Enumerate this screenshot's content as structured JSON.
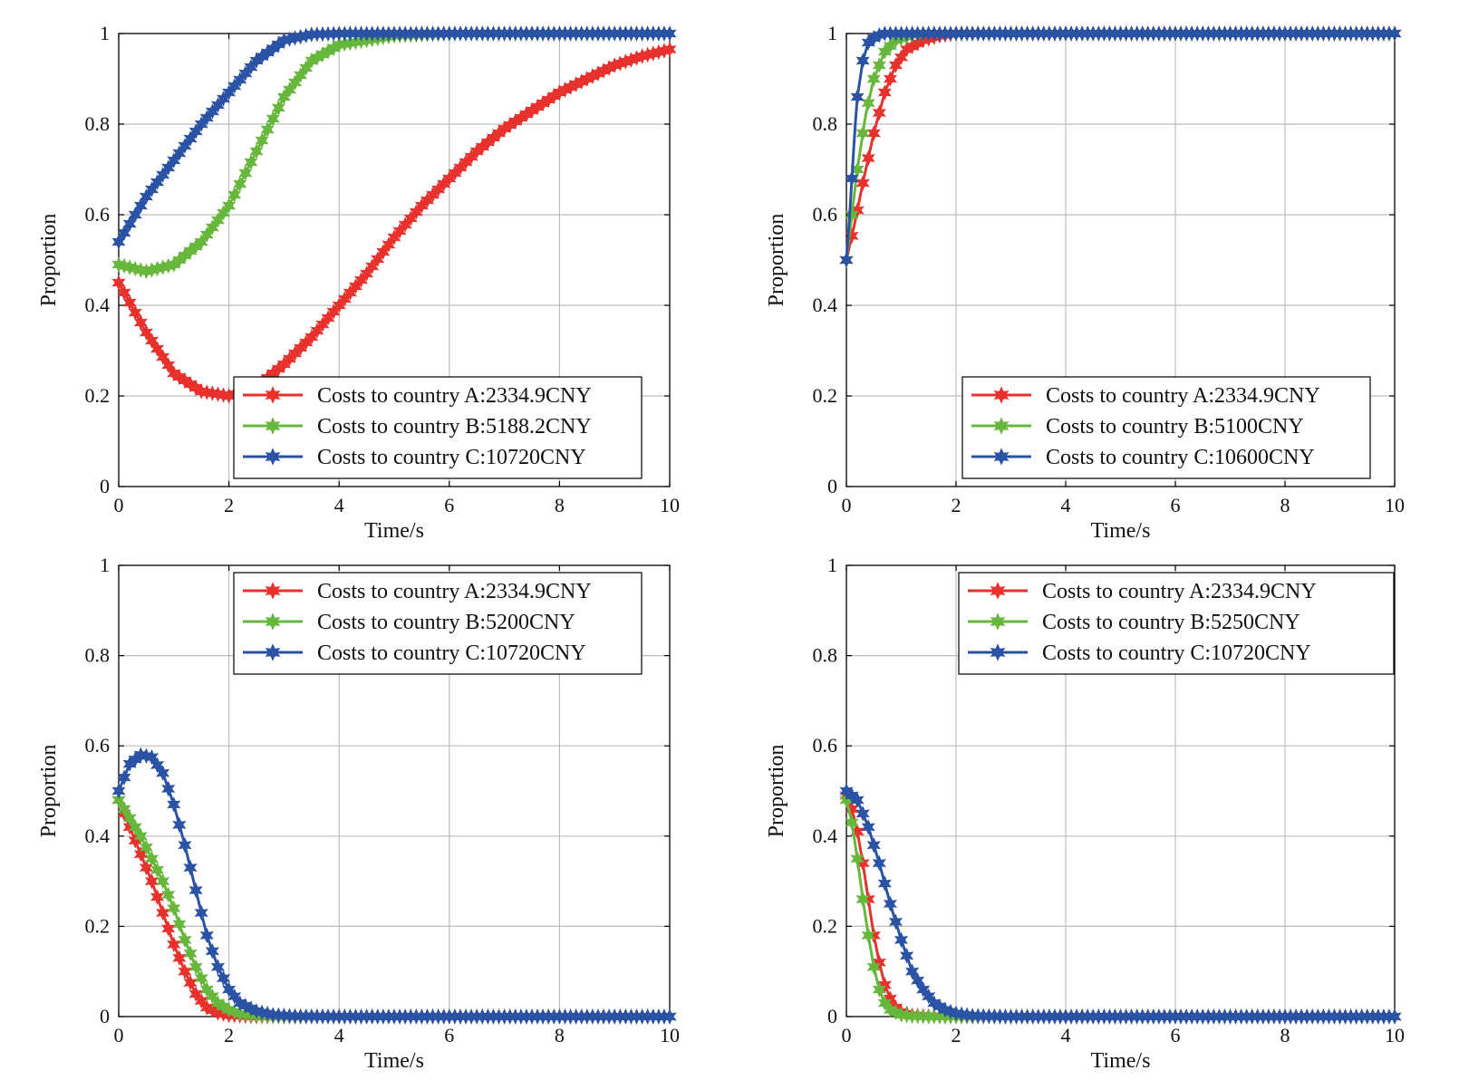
{
  "chart_data": [
    {
      "type": "line",
      "panel": "top-left",
      "xlabel": "Time/s",
      "ylabel": "Proportion",
      "xlim": [
        0,
        10
      ],
      "ylim": [
        0,
        1
      ],
      "xticks": [
        "0",
        "2",
        "4",
        "6",
        "8",
        "10"
      ],
      "yticks": [
        "0",
        "0.2",
        "0.4",
        "0.6",
        "0.8",
        "1"
      ],
      "legend_location": "bottom-right",
      "series": [
        {
          "name": "Costs to country A:2334.9CNY",
          "color": "#e8312d",
          "x": [
            0,
            0.5,
            1,
            1.5,
            2,
            2.5,
            3,
            3.5,
            4,
            4.5,
            5,
            5.5,
            6,
            6.5,
            7,
            7.5,
            8,
            8.5,
            9,
            9.5,
            10
          ],
          "y": [
            0.45,
            0.34,
            0.25,
            0.21,
            0.2,
            0.22,
            0.27,
            0.33,
            0.4,
            0.47,
            0.55,
            0.62,
            0.68,
            0.74,
            0.79,
            0.83,
            0.87,
            0.9,
            0.93,
            0.95,
            0.965
          ]
        },
        {
          "name": "Costs to country B:5188.2CNY",
          "color": "#66b73c",
          "x": [
            0,
            0.5,
            1,
            1.5,
            2,
            2.5,
            3,
            3.5,
            4,
            5,
            6,
            7,
            8,
            9,
            10
          ],
          "y": [
            0.49,
            0.475,
            0.49,
            0.54,
            0.62,
            0.74,
            0.86,
            0.94,
            0.975,
            0.995,
            1,
            1,
            1,
            1,
            1
          ]
        },
        {
          "name": "Costs to country C:10720CNY",
          "color": "#2a52a5",
          "x": [
            0,
            0.5,
            1,
            1.5,
            2,
            2.5,
            3,
            3.5,
            4,
            5,
            6,
            7,
            8,
            9,
            10
          ],
          "y": [
            0.54,
            0.64,
            0.72,
            0.8,
            0.87,
            0.94,
            0.985,
            0.998,
            1,
            1,
            1,
            1,
            1,
            1,
            1
          ]
        }
      ]
    },
    {
      "type": "line",
      "panel": "top-right",
      "xlabel": "Time/s",
      "ylabel": "Proportion",
      "xlim": [
        0,
        10
      ],
      "ylim": [
        0,
        1
      ],
      "xticks": [
        "0",
        "2",
        "4",
        "6",
        "8",
        "10"
      ],
      "yticks": [
        "0",
        "0.2",
        "0.4",
        "0.6",
        "0.8",
        "1"
      ],
      "legend_location": "bottom-right",
      "series": [
        {
          "name": "Costs to country A:2334.9CNY",
          "color": "#e8312d",
          "x": [
            0,
            0.15,
            0.3,
            0.5,
            0.7,
            0.9,
            1.1,
            1.4,
            1.7,
            2,
            3,
            4,
            5,
            6,
            7,
            8,
            9,
            10
          ],
          "y": [
            0.5,
            0.58,
            0.67,
            0.78,
            0.87,
            0.93,
            0.965,
            0.985,
            0.995,
            1,
            1,
            1,
            1,
            1,
            1,
            1,
            1,
            1
          ]
        },
        {
          "name": "Costs to country B:5100CNY",
          "color": "#66b73c",
          "x": [
            0,
            0.1,
            0.2,
            0.35,
            0.5,
            0.7,
            0.9,
            1.2,
            1.5,
            2,
            3,
            4,
            5,
            6,
            7,
            8,
            9,
            10
          ],
          "y": [
            0.5,
            0.6,
            0.7,
            0.82,
            0.9,
            0.96,
            0.985,
            0.997,
            1,
            1,
            1,
            1,
            1,
            1,
            1,
            1,
            1,
            1
          ]
        },
        {
          "name": "Costs to country C:10600CNY",
          "color": "#2a52a5",
          "x": [
            0,
            0.05,
            0.1,
            0.15,
            0.2,
            0.3,
            0.4,
            0.55,
            0.7,
            1,
            2,
            3,
            4,
            5,
            6,
            7,
            8,
            9,
            10
          ],
          "y": [
            0.5,
            0.58,
            0.68,
            0.78,
            0.86,
            0.94,
            0.98,
            0.995,
            1,
            1,
            1,
            1,
            1,
            1,
            1,
            1,
            1,
            1,
            1
          ]
        }
      ]
    },
    {
      "type": "line",
      "panel": "bottom-left",
      "xlabel": "Time/s",
      "ylabel": "Proportion",
      "xlim": [
        0,
        10
      ],
      "ylim": [
        0,
        1
      ],
      "xticks": [
        "0",
        "2",
        "4",
        "6",
        "8",
        "10"
      ],
      "yticks": [
        "0",
        "0.2",
        "0.4",
        "0.6",
        "0.8",
        "1"
      ],
      "legend_location": "top-right",
      "series": [
        {
          "name": "Costs to country A:2334.9CNY",
          "color": "#e8312d",
          "x": [
            0,
            0.2,
            0.4,
            0.6,
            0.8,
            1,
            1.2,
            1.4,
            1.6,
            1.8,
            2,
            2.5,
            3,
            4,
            5,
            6,
            7,
            8,
            9,
            10
          ],
          "y": [
            0.48,
            0.42,
            0.36,
            0.3,
            0.23,
            0.16,
            0.1,
            0.05,
            0.02,
            0.008,
            0.003,
            0,
            0,
            0,
            0,
            0,
            0,
            0,
            0,
            0
          ]
        },
        {
          "name": "Costs to country B:5200CNY",
          "color": "#66b73c",
          "x": [
            0,
            0.2,
            0.4,
            0.6,
            0.8,
            1,
            1.2,
            1.4,
            1.6,
            1.8,
            2,
            2.2,
            2.5,
            3,
            4,
            5,
            6,
            7,
            8,
            9,
            10
          ],
          "y": [
            0.48,
            0.44,
            0.4,
            0.35,
            0.3,
            0.24,
            0.17,
            0.11,
            0.06,
            0.03,
            0.015,
            0.006,
            0.002,
            0,
            0,
            0,
            0,
            0,
            0,
            0,
            0
          ]
        },
        {
          "name": "Costs to country C:10720CNY",
          "color": "#2a52a5",
          "x": [
            0,
            0.2,
            0.4,
            0.6,
            0.8,
            1,
            1.2,
            1.4,
            1.6,
            1.8,
            2,
            2.2,
            2.5,
            2.8,
            3.2,
            4,
            5,
            6,
            7,
            8,
            9,
            10
          ],
          "y": [
            0.5,
            0.56,
            0.58,
            0.575,
            0.54,
            0.47,
            0.38,
            0.28,
            0.18,
            0.11,
            0.06,
            0.03,
            0.012,
            0.004,
            0.001,
            0,
            0,
            0,
            0,
            0,
            0,
            0
          ]
        }
      ]
    },
    {
      "type": "line",
      "panel": "bottom-right",
      "xlabel": "Time/s",
      "ylabel": "Proportion",
      "xlim": [
        0,
        10
      ],
      "ylim": [
        0,
        1
      ],
      "xticks": [
        "0",
        "2",
        "4",
        "6",
        "8",
        "10"
      ],
      "yticks": [
        "0",
        "0.2",
        "0.4",
        "0.6",
        "0.8",
        "1"
      ],
      "legend_location": "top-right",
      "series": [
        {
          "name": "Costs to country A:2334.9CNY",
          "color": "#e8312d",
          "x": [
            0,
            0.1,
            0.2,
            0.3,
            0.4,
            0.5,
            0.6,
            0.7,
            0.8,
            0.9,
            1,
            1.2,
            1.5,
            2,
            3,
            4,
            5,
            6,
            7,
            8,
            9,
            10
          ],
          "y": [
            0.49,
            0.46,
            0.41,
            0.34,
            0.26,
            0.18,
            0.12,
            0.07,
            0.04,
            0.02,
            0.01,
            0.003,
            0.001,
            0,
            0,
            0,
            0,
            0,
            0,
            0,
            0,
            0
          ]
        },
        {
          "name": "Costs to country B:5250CNY",
          "color": "#66b73c",
          "x": [
            0,
            0.1,
            0.2,
            0.3,
            0.4,
            0.5,
            0.6,
            0.7,
            0.8,
            1,
            1.2,
            1.5,
            2,
            3,
            4,
            5,
            6,
            7,
            8,
            9,
            10
          ],
          "y": [
            0.48,
            0.43,
            0.35,
            0.26,
            0.18,
            0.11,
            0.06,
            0.03,
            0.015,
            0.004,
            0.001,
            0,
            0,
            0,
            0,
            0,
            0,
            0,
            0,
            0,
            0
          ]
        },
        {
          "name": "Costs to country C:10720CNY",
          "color": "#2a52a5",
          "x": [
            0,
            0.2,
            0.4,
            0.6,
            0.8,
            1,
            1.2,
            1.4,
            1.6,
            1.8,
            2,
            2.3,
            2.6,
            3,
            4,
            5,
            6,
            7,
            8,
            9,
            10
          ],
          "y": [
            0.5,
            0.48,
            0.42,
            0.34,
            0.25,
            0.17,
            0.1,
            0.06,
            0.03,
            0.015,
            0.007,
            0.002,
            0.001,
            0,
            0,
            0,
            0,
            0,
            0,
            0,
            0
          ]
        }
      ]
    }
  ]
}
